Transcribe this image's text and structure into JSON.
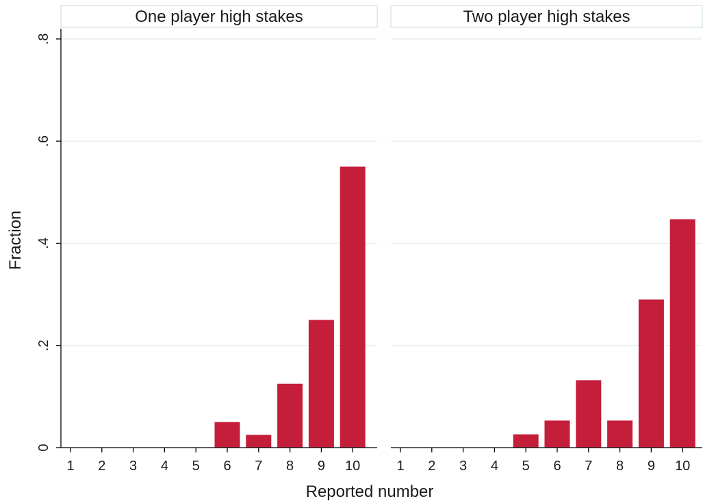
{
  "chart_data": {
    "type": "bar",
    "xlabel": "Reported number",
    "ylabel": "Fraction",
    "ylim": [
      0,
      0.82
    ],
    "yticks": [
      {
        "value": 0,
        "label": "0"
      },
      {
        "value": 0.2,
        "label": ".2"
      },
      {
        "value": 0.4,
        "label": ".4"
      },
      {
        "value": 0.6,
        "label": ".6"
      },
      {
        "value": 0.8,
        "label": ".8"
      }
    ],
    "grid": true,
    "bar_color": "#c41e3a",
    "categories": [
      "1",
      "2",
      "3",
      "4",
      "5",
      "6",
      "7",
      "8",
      "9",
      "10"
    ],
    "panels": [
      {
        "title": "One player high stakes",
        "values": [
          0,
          0,
          0,
          0,
          0,
          0.05,
          0.025,
          0.125,
          0.25,
          0.55
        ]
      },
      {
        "title": "Two player high stakes",
        "values": [
          0,
          0,
          0,
          0,
          0.026,
          0.053,
          0.132,
          0.053,
          0.29,
          0.447
        ]
      }
    ]
  }
}
